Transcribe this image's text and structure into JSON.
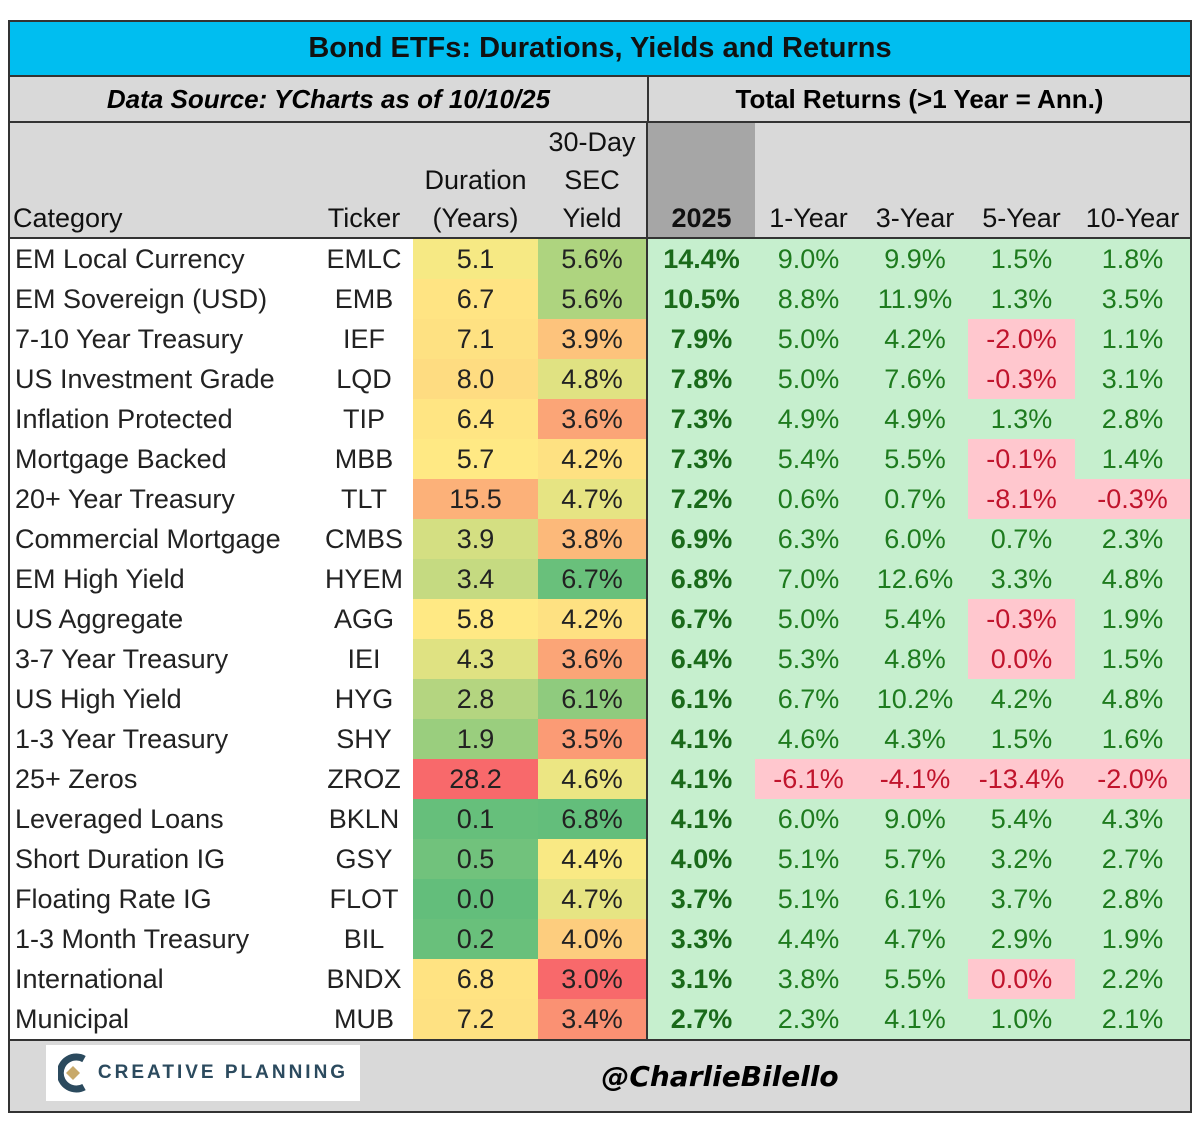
{
  "title": "Bond ETFs: Durations, Yields and Returns",
  "source": "Data Source: YCharts as of 10/10/25",
  "returns_header": "Total Returns (>1 Year = Ann.)",
  "footer": {
    "logo_text": "CREATIVE PLANNING",
    "handle": "@CharlieBilello"
  },
  "colors": {
    "title_bg": "#00BEF0",
    "pos_bg": "#C6EFCE",
    "neg_bg": "#FFC7CE",
    "low": "#63BE7B",
    "mid": "#FFEB84",
    "high": "#F8696B"
  },
  "chart_data": {
    "type": "table",
    "columns": [
      "Category",
      "Ticker",
      "Duration (Years)",
      "30-Day SEC Yield",
      "2025",
      "1-Year",
      "3-Year",
      "5-Year",
      "10-Year"
    ],
    "headers": {
      "category": "Category",
      "ticker": "Ticker",
      "duration": [
        "Duration",
        "(Years)"
      ],
      "yield": [
        "30-Day",
        "SEC",
        "Yield"
      ],
      "y2025": "2025",
      "y1": "1-Year",
      "y3": "3-Year",
      "y5": "5-Year",
      "y10": "10-Year"
    },
    "rows": [
      [
        "EM Local Currency",
        "EMLC",
        5.1,
        5.6,
        14.4,
        9.0,
        9.9,
        1.5,
        1.8
      ],
      [
        "EM Sovereign (USD)",
        "EMB",
        6.7,
        5.6,
        10.5,
        8.8,
        11.9,
        1.3,
        3.5
      ],
      [
        "7-10 Year Treasury",
        "IEF",
        7.1,
        3.9,
        7.9,
        5.0,
        4.2,
        -2.0,
        1.1
      ],
      [
        "US Investment Grade",
        "LQD",
        8.0,
        4.8,
        7.8,
        5.0,
        7.6,
        -0.3,
        3.1
      ],
      [
        "Inflation Protected",
        "TIP",
        6.4,
        3.6,
        7.3,
        4.9,
        4.9,
        1.3,
        2.8
      ],
      [
        "Mortgage Backed",
        "MBB",
        5.7,
        4.2,
        7.3,
        5.4,
        5.5,
        -0.1,
        1.4
      ],
      [
        "20+ Year Treasury",
        "TLT",
        15.5,
        4.7,
        7.2,
        0.6,
        0.7,
        -8.1,
        -0.3
      ],
      [
        "Commercial Mortgage",
        "CMBS",
        3.9,
        3.8,
        6.9,
        6.3,
        6.0,
        0.7,
        2.3
      ],
      [
        "EM High Yield",
        "HYEM",
        3.4,
        6.7,
        6.8,
        7.0,
        12.6,
        3.3,
        4.8
      ],
      [
        "US Aggregate",
        "AGG",
        5.8,
        4.2,
        6.7,
        5.0,
        5.4,
        -0.3,
        1.9
      ],
      [
        "3-7 Year Treasury",
        "IEI",
        4.3,
        3.6,
        6.4,
        5.3,
        4.8,
        0.0,
        1.5
      ],
      [
        "US High Yield",
        "HYG",
        2.8,
        6.1,
        6.1,
        6.7,
        10.2,
        4.2,
        4.8
      ],
      [
        "1-3 Year Treasury",
        "SHY",
        1.9,
        3.5,
        4.1,
        4.6,
        4.3,
        1.5,
        1.6
      ],
      [
        "25+ Zeros",
        "ZROZ",
        28.2,
        4.6,
        4.1,
        -6.1,
        -4.1,
        -13.4,
        -2.0
      ],
      [
        "Leveraged Loans",
        "BKLN",
        0.1,
        6.8,
        4.1,
        6.0,
        9.0,
        5.4,
        4.3
      ],
      [
        "Short Duration IG",
        "GSY",
        0.5,
        4.4,
        4.0,
        5.1,
        5.7,
        3.2,
        2.7
      ],
      [
        "Floating Rate IG",
        "FLOT",
        0.0,
        4.7,
        3.7,
        5.1,
        6.1,
        3.7,
        2.8
      ],
      [
        "1-3 Month Treasury",
        "BIL",
        0.2,
        4.0,
        3.3,
        4.4,
        4.7,
        2.9,
        1.9
      ],
      [
        "International",
        "BNDX",
        6.8,
        3.0,
        3.1,
        3.8,
        5.5,
        0.0,
        2.2
      ],
      [
        "Municipal",
        "MUB",
        7.2,
        3.4,
        2.7,
        2.3,
        4.1,
        1.0,
        2.1
      ]
    ]
  }
}
